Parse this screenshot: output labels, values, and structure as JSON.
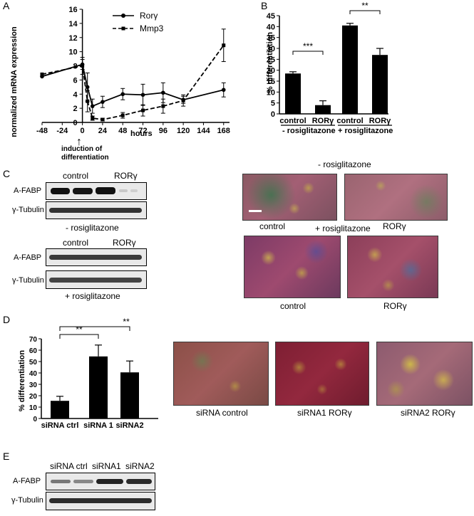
{
  "panels": {
    "a": "A",
    "b": "B",
    "c": "C",
    "d": "D",
    "e": "E"
  },
  "panel_a": {
    "y_axis_label": "normalized mRNA expression",
    "x_axis_label": "hours",
    "annotation": "induction of differentiation",
    "legend": [
      "Rorγ",
      "Mmp3"
    ]
  },
  "panel_b": {
    "y_axis_label": "% differentiation",
    "x_labels": [
      "control",
      "RORγ",
      "control",
      "RORγ"
    ],
    "groups": [
      "- rosiglitazone",
      "+ rosiglitazone"
    ],
    "sig": [
      "***",
      "**"
    ]
  },
  "panel_b_images": {
    "top_title": "- rosiglitazone",
    "bottom_title": "+ rosiglitazone",
    "captions": [
      "control",
      "RORγ",
      "control",
      "RORγ"
    ]
  },
  "panel_c": {
    "top_lanes": [
      "control",
      "RORγ"
    ],
    "bottom_lanes": [
      "control",
      "RORγ"
    ],
    "rows": [
      "A-FABP",
      "γ-Tubulin",
      "A-FABP",
      "γ-Tubulin"
    ],
    "top_condition": "- rosiglitazone",
    "bottom_condition": "+ rosiglitazone"
  },
  "panel_d": {
    "y_axis_label": "% differentiation",
    "x_labels": [
      "siRNA ctrl",
      "siRNA 1",
      "siRNA2"
    ],
    "sig": [
      "**",
      "**"
    ]
  },
  "panel_d_images": {
    "captions": [
      "siRNA control",
      "siRNA1 RORγ",
      "siRNA2 RORγ"
    ]
  },
  "panel_e": {
    "lanes": [
      "siRNA ctrl",
      "siRNA1",
      "siRNA2"
    ],
    "rows": [
      "A-FABP",
      "γ-Tubulin"
    ]
  },
  "chart_data": [
    {
      "type": "line",
      "panel": "A",
      "xlabel": "hours",
      "ylabel": "normalized mRNA expression",
      "x_ticks": [
        -48,
        -24,
        0,
        24,
        48,
        72,
        96,
        120,
        144,
        168
      ],
      "y_ticks": [
        0,
        2,
        4,
        6,
        8,
        10,
        12,
        14,
        16
      ],
      "xlim": [
        -48,
        175
      ],
      "ylim": [
        0,
        16
      ],
      "series": [
        {
          "name": "Rorγ",
          "style": "solid",
          "marker": "circle",
          "x": [
            -48,
            0,
            6,
            12,
            24,
            48,
            72,
            96,
            120,
            168
          ],
          "y": [
            6.5,
            8.2,
            5.0,
            2.3,
            2.9,
            4.0,
            3.9,
            4.2,
            3.2,
            4.6
          ],
          "err": [
            0,
            0.7,
            2.0,
            1.0,
            0.8,
            0.8,
            1.5,
            1.4,
            0.5,
            1.0
          ]
        },
        {
          "name": "Mmp3",
          "style": "dashed",
          "marker": "square",
          "x": [
            -48,
            0,
            6,
            12,
            24,
            48,
            72,
            96,
            120,
            168
          ],
          "y": [
            6.8,
            8.0,
            3.0,
            0.6,
            0.4,
            1.0,
            1.7,
            2.3,
            3.1,
            10.9
          ],
          "err": [
            0,
            1.2,
            1.5,
            0.3,
            0.2,
            0.4,
            0.8,
            1.0,
            0.8,
            2.3
          ]
        }
      ]
    },
    {
      "type": "bar",
      "panel": "B",
      "ylabel": "% differentiation",
      "categories": [
        "control",
        "RORγ",
        "control",
        "RORγ"
      ],
      "values": [
        18.5,
        4.0,
        40.5,
        27.0
      ],
      "errors": [
        0.8,
        2.0,
        1.0,
        3.0
      ],
      "y_ticks": [
        0,
        5,
        10,
        15,
        20,
        25,
        30,
        35,
        40,
        45
      ],
      "ylim": [
        0,
        45
      ],
      "significance": [
        {
          "between": [
            0,
            1
          ],
          "label": "***"
        },
        {
          "between": [
            2,
            3
          ],
          "label": "**"
        }
      ]
    },
    {
      "type": "bar",
      "panel": "D",
      "ylabel": "% differentiation",
      "categories": [
        "siRNA ctrl",
        "siRNA 1",
        "siRNA2"
      ],
      "values": [
        15.5,
        54.5,
        40.5
      ],
      "errors": [
        4.0,
        10.0,
        10.0
      ],
      "y_ticks": [
        0,
        10,
        20,
        30,
        40,
        50,
        60,
        70
      ],
      "ylim": [
        0,
        70
      ],
      "significance": [
        {
          "between": [
            0,
            1
          ],
          "label": "**"
        },
        {
          "between": [
            0,
            2
          ],
          "label": "**"
        }
      ]
    }
  ]
}
